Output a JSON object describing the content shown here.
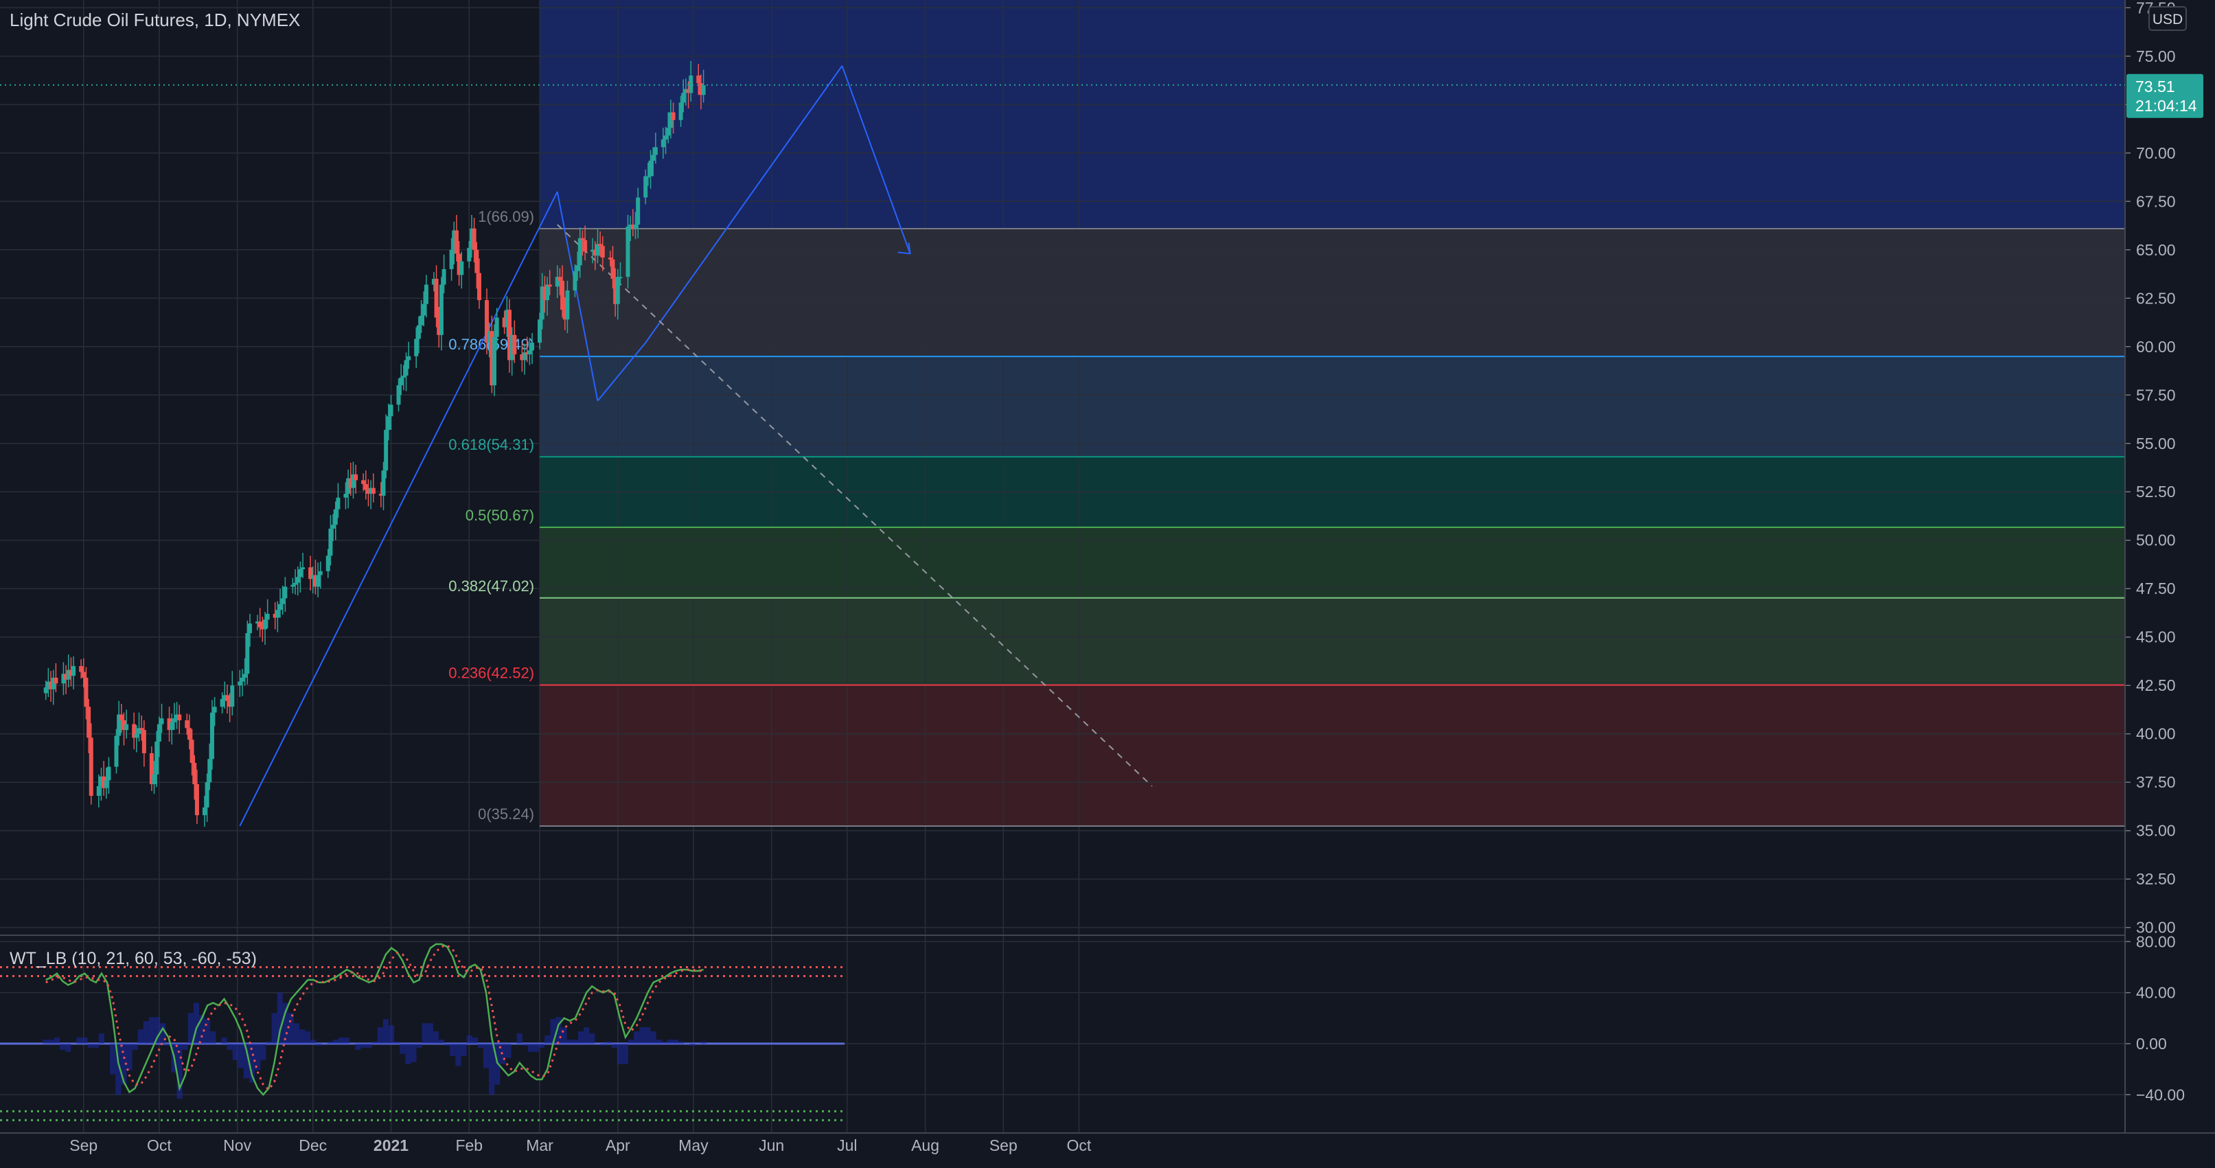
{
  "header": {
    "title": "Light Crude Oil Futures, 1D, NYMEX",
    "currency": "USD"
  },
  "price_tag": {
    "price": "73.51",
    "countdown": "21:04:14"
  },
  "colors": {
    "background": "#131722",
    "grid": "#2a2e39",
    "up": "#26a69a",
    "down": "#ef5350",
    "drawing": "#2962ff",
    "axis_text": "#b2b5be"
  },
  "chart_data": [
    {
      "type": "candlestick",
      "title": "Light Crude Oil Futures, 1D, NYMEX",
      "currency": "USD",
      "x_ticks": [
        "Sep",
        "Oct",
        "Nov",
        "Dec",
        "2021",
        "Feb",
        "Mar",
        "Apr",
        "May",
        "Jun",
        "Jul",
        "Aug",
        "Sep",
        "Oct"
      ],
      "y_ticks": [
        "30.00",
        "32.50",
        "35.00",
        "37.50",
        "40.00",
        "42.50",
        "45.00",
        "47.50",
        "50.00",
        "52.50",
        "55.00",
        "57.50",
        "60.00",
        "62.50",
        "65.00",
        "67.50",
        "70.00",
        "72.50",
        "75.00",
        "77.50"
      ],
      "ylim": [
        29.6,
        77.9
      ],
      "last_price": 73.51,
      "grid": true,
      "close_series_start": "2020-08-17",
      "closes": [
        42.4,
        42.7,
        42.3,
        42.9,
        42.6,
        43.1,
        42.8,
        43.3,
        43.0,
        43.5,
        43.2,
        42.9,
        41.4,
        39.8,
        36.8,
        37.3,
        37.8,
        37.2,
        37.6,
        38.3,
        39.9,
        41.0,
        40.7,
        40.2,
        40.5,
        39.8,
        40.0,
        40.3,
        40.2,
        39.0,
        37.4,
        37.9,
        39.6,
        40.5,
        40.8,
        40.2,
        40.6,
        40.8,
        41.0,
        40.7,
        40.3,
        39.7,
        38.5,
        37.4,
        35.8,
        36.2,
        37.5,
        38.7,
        41.1,
        41.4,
        41.8,
        42.0,
        41.7,
        41.4,
        42.5,
        42.7,
        42.9,
        43.1,
        45.2,
        45.7,
        45.8,
        45.5,
        45.4,
        45.9,
        46.2,
        46.0,
        46.4,
        46.7,
        47.0,
        47.6,
        47.7,
        47.8,
        48.1,
        48.5,
        48.6,
        48.0,
        48.2,
        47.6,
        48.2,
        48.4,
        49.2,
        50.6,
        50.8,
        51.6,
        52.2,
        52.4,
        53.2,
        52.7,
        53.4,
        53.1,
        52.9,
        52.6,
        52.4,
        52.7,
        52.4,
        52.3,
        53.6,
        55.7,
        56.4,
        57.0,
        58.0,
        58.4,
        58.5,
        59.3,
        59.5,
        60.4,
        61.1,
        61.6,
        62.2,
        63.2,
        63.5,
        61.5,
        60.6,
        63.2,
        64.0,
        65.0,
        66.0,
        64.8,
        63.7,
        64.4,
        65.1,
        66.1,
        65.0,
        63.8,
        62.4,
        60.2,
        60.8,
        58.0,
        60.5,
        61.5,
        61.0,
        61.9,
        59.3,
        60.6,
        59.6,
        59.3,
        59.7,
        59.6,
        59.8,
        60.2,
        61.4,
        63.1,
        62.4,
        63.2,
        63.1,
        63.6,
        63.4,
        61.9,
        61.4,
        62.9,
        63.9,
        64.2,
        65.6,
        65.5,
        64.9,
        65.0,
        64.7,
        65.3,
        65.2,
        64.6,
        64.5,
        63.5,
        62.2,
        63.6,
        63.6,
        66.2,
        66.3,
        66.1,
        66.3,
        67.7,
        68.8,
        68.8,
        69.6,
        69.9,
        70.3,
        70.7,
        70.9,
        71.3,
        72.1,
        71.7,
        72.6,
        73.1,
        73.3,
        73.1,
        74.0,
        73.6,
        73.0,
        73.5
      ],
      "fibonacci": {
        "levels": [
          "1(66.09)",
          "0.786(59.49)",
          "0.618(54.31)",
          "0.5(50.67)",
          "0.382(47.02)",
          "0.236(42.52)",
          "0(35.24)"
        ],
        "values": [
          66.09,
          59.49,
          54.31,
          50.67,
          47.02,
          42.52,
          35.24
        ],
        "line_colors": [
          "#787b86",
          "#2196f3",
          "#089981",
          "#4caf50",
          "#81c784",
          "#f23645",
          "#787b86"
        ],
        "label_colors": [
          "#787b86",
          "#64b5f6",
          "#26a69a",
          "#66bb6a",
          "#a5d6a7",
          "#f23645",
          "#787b86"
        ],
        "zone_colors": [
          "#2b2e3a",
          "#233650",
          "#0d3a3a",
          "#1d3a2a",
          "#253a2e",
          "#3d1f26"
        ],
        "top_zone_color": "#1a2a6c"
      }
    },
    {
      "type": "line",
      "title": "WT_LB (10, 21, 60, 53, -60, -53)",
      "y_ticks": [
        "80.00",
        "40.00",
        "0.00",
        "−40.00"
      ],
      "ylim": [
        -70,
        85
      ],
      "grid": true,
      "bands": [
        60,
        53,
        0,
        -53,
        -60
      ],
      "wt1_series_start": "2020-08-17",
      "wt1": [
        50,
        52,
        55,
        49,
        46,
        48,
        53,
        55,
        50,
        48,
        55,
        48,
        20,
        -15,
        -30,
        -38,
        -35,
        -25,
        -15,
        -5,
        5,
        12,
        5,
        -10,
        -35,
        -25,
        -5,
        12,
        20,
        30,
        32,
        30,
        35,
        28,
        20,
        10,
        -5,
        -25,
        -35,
        -40,
        -35,
        -15,
        10,
        25,
        35,
        40,
        45,
        50,
        50,
        48,
        48,
        50,
        52,
        55,
        58,
        56,
        52,
        50,
        48,
        50,
        60,
        70,
        75,
        72,
        65,
        55,
        48,
        50,
        65,
        75,
        78,
        78,
        76,
        68,
        55,
        52,
        60,
        62,
        58,
        40,
        5,
        -15,
        -20,
        -25,
        -22,
        -15,
        -20,
        -25,
        -28,
        -28,
        -20,
        0,
        15,
        20,
        18,
        20,
        30,
        40,
        45,
        42,
        40,
        42,
        38,
        20,
        5,
        12,
        20,
        30,
        40,
        48,
        50,
        52,
        55,
        57,
        58,
        58,
        57,
        57,
        58
      ],
      "wt2_series_start": "2020-08-17",
      "wt2": [
        48,
        50,
        52,
        52,
        50,
        48,
        50,
        52,
        52,
        50,
        50,
        48,
        35,
        10,
        -10,
        -25,
        -32,
        -32,
        -26,
        -18,
        -8,
        2,
        6,
        4,
        -8,
        -22,
        -20,
        -8,
        6,
        18,
        26,
        30,
        32,
        31,
        28,
        22,
        12,
        -6,
        -22,
        -32,
        -36,
        -30,
        -15,
        5,
        20,
        30,
        38,
        44,
        48,
        49,
        48,
        49,
        50,
        52,
        55,
        56,
        55,
        52,
        50,
        49,
        52,
        58,
        66,
        71,
        70,
        65,
        57,
        52,
        55,
        65,
        72,
        76,
        77,
        74,
        66,
        58,
        56,
        59,
        60,
        52,
        30,
        5,
        -10,
        -18,
        -22,
        -20,
        -19,
        -21,
        -24,
        -26,
        -24,
        -12,
        2,
        12,
        16,
        18,
        24,
        32,
        40,
        42,
        41,
        41,
        40,
        30,
        15,
        10,
        14,
        22,
        32,
        42,
        48,
        51,
        53,
        55,
        57,
        58,
        58,
        57,
        57
      ]
    }
  ],
  "drawings": {
    "trend_lines": [
      {
        "from": [
          "2020-11-02",
          35.24
        ],
        "to": [
          "2021-03-08",
          68.0
        ]
      },
      {
        "from": [
          "2021-03-08",
          68.0
        ],
        "to": [
          "2021-03-24",
          57.2
        ]
      },
      {
        "from": [
          "2021-03-24",
          57.2
        ],
        "to": [
          "2021-04-12",
          60.2
        ]
      },
      {
        "from": [
          "2021-04-12",
          60.2
        ],
        "to": [
          "2021-06-29",
          74.5
        ]
      },
      {
        "from": [
          "2021-06-29",
          74.5
        ],
        "to": [
          "2021-07-26",
          64.8
        ]
      }
    ],
    "projection_line": {
      "from": [
        "2021-03-08",
        66.3
      ],
      "to": [
        "2021-10-30",
        37.3
      ]
    }
  }
}
